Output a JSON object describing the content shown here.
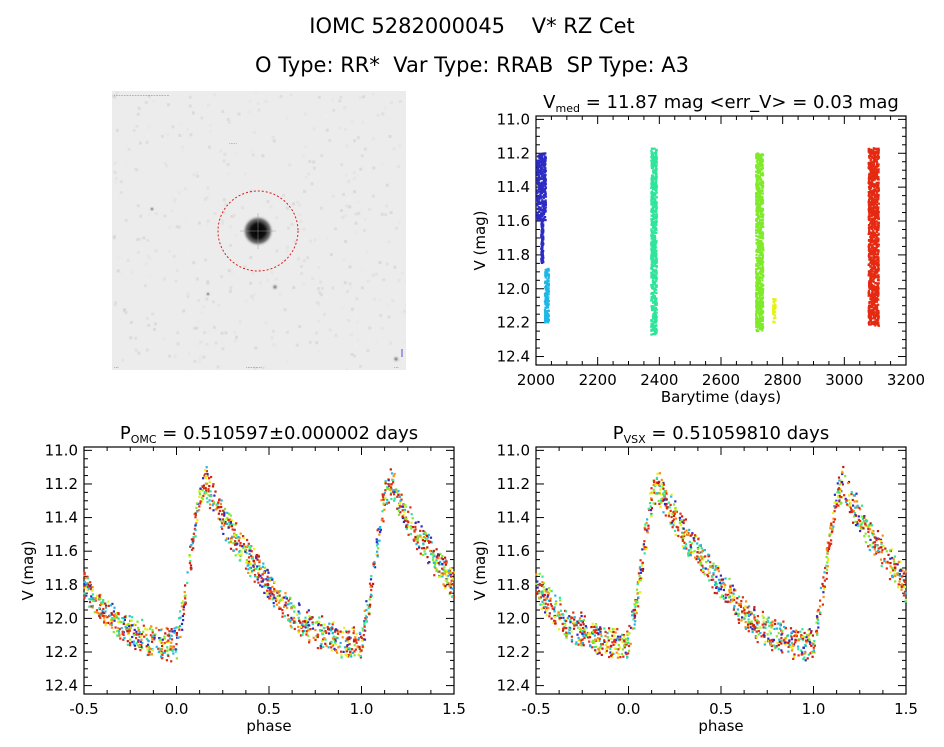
{
  "header": {
    "title": "IOMC 5282000045    V* RZ Cet",
    "subtitle": "O Type: RR*  Var Type: RRAB  SP Type: A3"
  },
  "cutout": {
    "top_label": "···································",
    "marker_label": "·····",
    "bottom_left": "···",
    "bottom_center": "··········",
    "bottom_right": "···"
  },
  "chart_data": [
    {
      "type": "scatter",
      "title": "V_med = 11.87 mag <err_V> = 0.03 mag",
      "title_parts": {
        "main": "V",
        "sub": "med",
        "rest": " = 11.87 mag <err_V> = 0.03 mag"
      },
      "xlabel": "Barytime (days)",
      "ylabel": "V (mag)",
      "xlim": [
        2000,
        3200
      ],
      "ylim": [
        12.45,
        10.98
      ],
      "y_inverted": true,
      "xticks": [
        "2000",
        "2200",
        "2400",
        "2600",
        "2800",
        "3000",
        "3200"
      ],
      "yticks": [
        "11.0",
        "11.2",
        "11.4",
        "11.6",
        "11.8",
        "12.0",
        "12.2",
        "12.4"
      ],
      "series": [
        {
          "color": "#2c2cc4",
          "x": [
            2005,
            2010,
            2015,
            2020,
            2025,
            2030
          ],
          "y_range": [
            11.2,
            11.6
          ]
        },
        {
          "color": "#2c2cc4",
          "x": [
            2018,
            2020,
            2022
          ],
          "y_range": [
            11.6,
            11.85
          ]
        },
        {
          "color": "#1fb7e6",
          "x": [
            2030,
            2033,
            2036,
            2040
          ],
          "y_range": [
            11.88,
            12.2
          ]
        },
        {
          "color": "#2ee59a",
          "x": [
            2375,
            2380,
            2385,
            2390
          ],
          "y_range": [
            11.17,
            12.27
          ]
        },
        {
          "color": "#7fea2a",
          "x": [
            2715,
            2720,
            2725,
            2730,
            2735
          ],
          "y_range": [
            11.2,
            12.25
          ]
        },
        {
          "color": "#e6f214",
          "x": [
            2770,
            2775
          ],
          "y_range": [
            12.06,
            12.2
          ]
        },
        {
          "color": "#e52a12",
          "x": [
            3080,
            3085,
            3090,
            3095,
            3100,
            3105,
            3110
          ],
          "y_range": [
            11.17,
            12.22
          ]
        }
      ]
    },
    {
      "type": "scatter",
      "title": "P_OMC = 0.510597±0.000002 days",
      "title_parts": {
        "main": "P",
        "sub": "OMC",
        "rest": " = 0.510597±0.000002 days"
      },
      "xlabel": "phase",
      "ylabel": "V (mag)",
      "xlim": [
        -0.5,
        1.5
      ],
      "ylim": [
        12.45,
        10.98
      ],
      "y_inverted": true,
      "xticks": [
        "-0.5",
        "0.0",
        "0.5",
        "1.0",
        "1.5"
      ],
      "yticks": [
        "11.0",
        "11.2",
        "11.4",
        "11.6",
        "11.8",
        "12.0",
        "12.2",
        "12.4"
      ],
      "light_curve": {
        "phase": [
          0.0,
          0.05,
          0.1,
          0.13,
          0.16,
          0.2,
          0.3,
          0.4,
          0.5,
          0.6,
          0.7,
          0.8,
          0.9,
          1.0
        ],
        "mag": [
          12.15,
          11.85,
          11.45,
          11.25,
          11.2,
          11.3,
          11.5,
          11.65,
          11.8,
          11.95,
          12.05,
          12.1,
          12.15,
          12.15
        ]
      },
      "colors": [
        "#e52a12",
        "#e52a12",
        "#c21a10",
        "#7fea2a",
        "#2ee59a",
        "#e6f214",
        "#ff8a12",
        "#2c2cc4",
        "#1fb7e6"
      ]
    },
    {
      "type": "scatter",
      "title": "P_VSX = 0.51059810 days",
      "title_parts": {
        "main": "P",
        "sub": "VSX",
        "rest": " = 0.51059810 days"
      },
      "xlabel": "phase",
      "ylabel": "V (mag)",
      "xlim": [
        -0.5,
        1.5
      ],
      "ylim": [
        12.45,
        10.98
      ],
      "y_inverted": true,
      "xticks": [
        "-0.5",
        "0.0",
        "0.5",
        "1.0",
        "1.5"
      ],
      "yticks": [
        "11.0",
        "11.2",
        "11.4",
        "11.6",
        "11.8",
        "12.0",
        "12.2",
        "12.4"
      ],
      "light_curve": {
        "phase": [
          0.0,
          0.05,
          0.1,
          0.13,
          0.16,
          0.2,
          0.3,
          0.4,
          0.5,
          0.6,
          0.7,
          0.8,
          0.9,
          1.0
        ],
        "mag": [
          12.15,
          11.85,
          11.45,
          11.25,
          11.2,
          11.3,
          11.5,
          11.65,
          11.8,
          11.95,
          12.05,
          12.1,
          12.15,
          12.15
        ]
      },
      "colors": [
        "#e52a12",
        "#e52a12",
        "#c21a10",
        "#7fea2a",
        "#2ee59a",
        "#e6f214",
        "#ff8a12",
        "#2c2cc4",
        "#1fb7e6"
      ]
    }
  ]
}
